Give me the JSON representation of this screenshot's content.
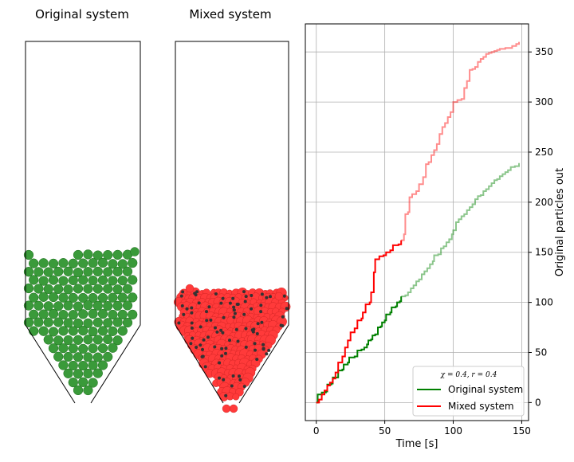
{
  "panels": {
    "left_title": "Original system",
    "middle_title": "Mixed system"
  },
  "colors": {
    "original": "#008000",
    "mixed": "#ff0000",
    "original_particle": "#3a9a3a",
    "mixed_particle": "#ff3a3a",
    "small_particle": "#333333",
    "grid": "#b0b0b0"
  },
  "chart_data": {
    "type": "line",
    "title": "",
    "xlabel": "Time [s]",
    "ylabel": "Original particles out",
    "xlim": [
      -8,
      155
    ],
    "ylim": [
      -18,
      378
    ],
    "xticks": [
      0,
      50,
      100,
      150
    ],
    "yticks": [
      0,
      50,
      100,
      150,
      200,
      250,
      300,
      350
    ],
    "grid": true,
    "y_axis_side": "right",
    "legend": {
      "title": "χ = 0.4, r = 0.4",
      "position": "lower-right"
    },
    "faded_after_x": 62,
    "series": [
      {
        "name": "Original system",
        "color": "#008000",
        "points": [
          [
            0,
            0
          ],
          [
            1,
            8
          ],
          [
            4,
            10
          ],
          [
            7,
            11
          ],
          [
            8,
            18
          ],
          [
            11,
            19
          ],
          [
            12,
            25
          ],
          [
            15,
            25
          ],
          [
            16,
            32
          ],
          [
            19,
            33
          ],
          [
            20,
            38
          ],
          [
            23,
            40
          ],
          [
            24,
            45
          ],
          [
            28,
            46
          ],
          [
            30,
            52
          ],
          [
            33,
            53
          ],
          [
            35,
            55
          ],
          [
            37,
            58
          ],
          [
            38,
            62
          ],
          [
            40,
            63
          ],
          [
            41,
            67
          ],
          [
            43,
            68
          ],
          [
            45,
            75
          ],
          [
            47,
            76
          ],
          [
            48,
            80
          ],
          [
            50,
            82
          ],
          [
            51,
            88
          ],
          [
            54,
            90
          ],
          [
            55,
            95
          ],
          [
            58,
            96
          ],
          [
            59,
            100
          ],
          [
            61,
            101
          ],
          [
            62,
            106
          ],
          [
            65,
            107
          ],
          [
            67,
            110
          ],
          [
            69,
            114
          ],
          [
            71,
            117
          ],
          [
            73,
            121
          ],
          [
            75,
            123
          ],
          [
            77,
            128
          ],
          [
            79,
            131
          ],
          [
            81,
            134
          ],
          [
            83,
            138
          ],
          [
            85,
            141
          ],
          [
            86,
            147
          ],
          [
            89,
            148
          ],
          [
            91,
            154
          ],
          [
            93,
            156
          ],
          [
            95,
            160
          ],
          [
            97,
            163
          ],
          [
            99,
            168
          ],
          [
            100,
            172
          ],
          [
            102,
            180
          ],
          [
            104,
            183
          ],
          [
            106,
            186
          ],
          [
            108,
            188
          ],
          [
            110,
            192
          ],
          [
            112,
            195
          ],
          [
            114,
            198
          ],
          [
            116,
            203
          ],
          [
            118,
            206
          ],
          [
            120,
            207
          ],
          [
            122,
            211
          ],
          [
            124,
            213
          ],
          [
            126,
            216
          ],
          [
            128,
            219
          ],
          [
            130,
            222
          ],
          [
            132,
            223
          ],
          [
            134,
            226
          ],
          [
            136,
            228
          ],
          [
            138,
            230
          ],
          [
            140,
            232
          ],
          [
            142,
            235
          ],
          [
            145,
            236
          ],
          [
            148,
            239
          ]
        ]
      },
      {
        "name": "Mixed system",
        "color": "#ff0000",
        "points": [
          [
            0,
            0
          ],
          [
            2,
            3
          ],
          [
            4,
            8
          ],
          [
            6,
            12
          ],
          [
            8,
            17
          ],
          [
            10,
            20
          ],
          [
            12,
            24
          ],
          [
            14,
            30
          ],
          [
            16,
            40
          ],
          [
            19,
            46
          ],
          [
            21,
            55
          ],
          [
            23,
            62
          ],
          [
            25,
            70
          ],
          [
            28,
            74
          ],
          [
            30,
            82
          ],
          [
            33,
            84
          ],
          [
            34,
            90
          ],
          [
            36,
            98
          ],
          [
            39,
            100
          ],
          [
            40,
            110
          ],
          [
            42,
            130
          ],
          [
            43,
            143
          ],
          [
            46,
            146
          ],
          [
            49,
            147
          ],
          [
            51,
            150
          ],
          [
            54,
            152
          ],
          [
            56,
            157
          ],
          [
            60,
            158
          ],
          [
            62,
            162
          ],
          [
            64,
            168
          ],
          [
            65,
            188
          ],
          [
            67,
            190
          ],
          [
            68,
            205
          ],
          [
            70,
            208
          ],
          [
            73,
            211
          ],
          [
            75,
            218
          ],
          [
            78,
            225
          ],
          [
            80,
            238
          ],
          [
            82,
            240
          ],
          [
            84,
            247
          ],
          [
            86,
            252
          ],
          [
            88,
            258
          ],
          [
            90,
            268
          ],
          [
            92,
            275
          ],
          [
            94,
            279
          ],
          [
            96,
            285
          ],
          [
            98,
            290
          ],
          [
            100,
            300
          ],
          [
            103,
            302
          ],
          [
            106,
            303
          ],
          [
            108,
            314
          ],
          [
            110,
            321
          ],
          [
            112,
            332
          ],
          [
            114,
            333
          ],
          [
            116,
            335
          ],
          [
            118,
            340
          ],
          [
            120,
            343
          ],
          [
            122,
            345
          ],
          [
            124,
            348
          ],
          [
            126,
            349
          ],
          [
            128,
            350
          ],
          [
            130,
            351
          ],
          [
            132,
            352
          ],
          [
            134,
            353
          ],
          [
            138,
            354
          ],
          [
            143,
            356
          ],
          [
            146,
            358
          ],
          [
            148,
            360
          ]
        ]
      }
    ]
  }
}
